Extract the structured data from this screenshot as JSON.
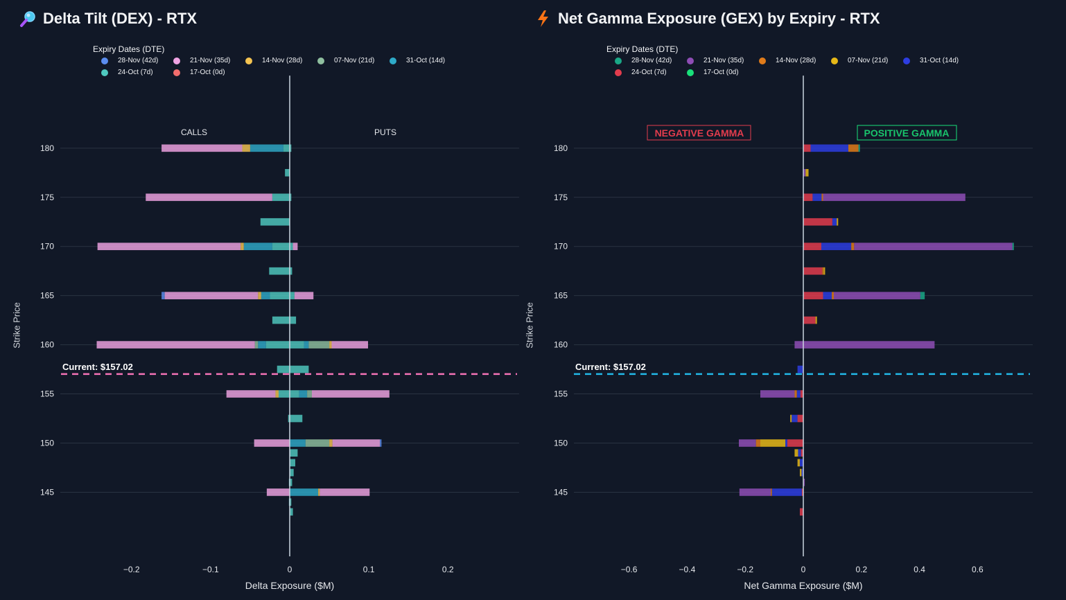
{
  "dex": {
    "title": "Delta Tilt (DEX) - RTX",
    "title_icon": "magnifier-icon",
    "legend_title": "Expiry Dates (DTE)",
    "legend": [
      {
        "label": "28-Nov (42d)",
        "color": "#5b8def"
      },
      {
        "label": "21-Nov (35d)",
        "color": "#f0a3e3"
      },
      {
        "label": "14-Nov (28d)",
        "color": "#f5c451"
      },
      {
        "label": "07-Nov (21d)",
        "color": "#8fbf9f"
      },
      {
        "label": "31-Oct (14d)",
        "color": "#2eaac8"
      },
      {
        "label": "24-Oct (7d)",
        "color": "#4fc9c0"
      },
      {
        "label": "17-Oct (0d)",
        "color": "#f26d6d"
      }
    ],
    "annotations": {
      "calls": "CALLS",
      "puts": "PUTS",
      "current": "Current: $157.02",
      "current_color": "#f472b6"
    },
    "axis": {
      "ylabel": "Strike Price",
      "xlabel": "Delta Exposure ($M)"
    }
  },
  "gex": {
    "title": "Net Gamma Exposure (GEX) by Expiry - RTX",
    "title_icon": "lightning-icon",
    "legend_title": "Expiry Dates (DTE)",
    "legend": [
      {
        "label": "28-Nov (42d)",
        "color": "#1aa786"
      },
      {
        "label": "21-Nov (35d)",
        "color": "#8e4db5"
      },
      {
        "label": "14-Nov (28d)",
        "color": "#e07b1a"
      },
      {
        "label": "07-Nov (21d)",
        "color": "#e6b817"
      },
      {
        "label": "31-Oct (14d)",
        "color": "#2d3de0"
      },
      {
        "label": "24-Oct (7d)",
        "color": "#e23c4d"
      },
      {
        "label": "17-Oct (0d)",
        "color": "#19e07a"
      }
    ],
    "annotations": {
      "negative": "NEGATIVE GAMMA",
      "positive": "POSITIVE GAMMA",
      "current": "Current: $157.02",
      "current_color": "#22b8e8"
    },
    "axis": {
      "ylabel": "Strike Price",
      "xlabel": "Net Gamma Exposure ($M)"
    }
  },
  "chart_data": [
    {
      "type": "bar",
      "orientation": "horizontal",
      "stacked": "overlay",
      "title": "Delta Tilt (DEX) - RTX",
      "xlabel": "Delta Exposure ($M)",
      "ylabel": "Strike Price",
      "xlim": [
        -0.29,
        0.29
      ],
      "ylim": [
        142,
        183.5
      ],
      "xticks": [
        -0.2,
        -0.1,
        0,
        0.1,
        0.2
      ],
      "xtick_labels": [
        "−0.2",
        "−0.1",
        "0",
        "0.1",
        "0.2"
      ],
      "yticks": [
        145,
        150,
        155,
        160,
        165,
        170,
        175,
        180
      ],
      "current_price": 157.02,
      "bar_height_strike": 0.75,
      "bars": [
        {
          "strike": 180,
          "series": "21-Nov (35d)",
          "x0": -0.162,
          "x1": -0.06
        },
        {
          "strike": 180,
          "series": "14-Nov (28d)",
          "x0": -0.06,
          "x1": -0.05
        },
        {
          "strike": 180,
          "series": "31-Oct (14d)",
          "x0": -0.05,
          "x1": -0.008
        },
        {
          "strike": 180,
          "series": "24-Oct (7d)",
          "x0": -0.008,
          "x1": 0.002
        },
        {
          "strike": 177.5,
          "series": "24-Oct (7d)",
          "x0": -0.006,
          "x1": 0.0
        },
        {
          "strike": 175,
          "series": "21-Nov (35d)",
          "x0": -0.182,
          "x1": -0.022
        },
        {
          "strike": 175,
          "series": "24-Oct (7d)",
          "x0": -0.022,
          "x1": 0.002
        },
        {
          "strike": 172.5,
          "series": "24-Oct (7d)",
          "x0": -0.037,
          "x1": 0.0
        },
        {
          "strike": 170,
          "series": "21-Nov (35d)",
          "x0": -0.243,
          "x1": -0.062
        },
        {
          "strike": 170,
          "series": "14-Nov (28d)",
          "x0": -0.062,
          "x1": -0.058
        },
        {
          "strike": 170,
          "series": "31-Oct (14d)",
          "x0": -0.058,
          "x1": -0.022
        },
        {
          "strike": 170,
          "series": "24-Oct (7d)",
          "x0": -0.022,
          "x1": 0.004
        },
        {
          "strike": 170,
          "series": "21-Nov (35d)",
          "x0": 0.004,
          "x1": 0.01
        },
        {
          "strike": 167.5,
          "series": "24-Oct (7d)",
          "x0": -0.026,
          "x1": 0.003
        },
        {
          "strike": 165,
          "series": "28-Nov (42d)",
          "x0": -0.162,
          "x1": -0.158
        },
        {
          "strike": 165,
          "series": "21-Nov (35d)",
          "x0": -0.158,
          "x1": -0.04
        },
        {
          "strike": 165,
          "series": "14-Nov (28d)",
          "x0": -0.04,
          "x1": -0.036
        },
        {
          "strike": 165,
          "series": "31-Oct (14d)",
          "x0": -0.036,
          "x1": -0.025
        },
        {
          "strike": 165,
          "series": "24-Oct (7d)",
          "x0": -0.025,
          "x1": 0.006
        },
        {
          "strike": 165,
          "series": "21-Nov (35d)",
          "x0": 0.006,
          "x1": 0.03
        },
        {
          "strike": 162.5,
          "series": "24-Oct (7d)",
          "x0": -0.022,
          "x1": 0.008
        },
        {
          "strike": 160,
          "series": "21-Nov (35d)",
          "x0": -0.244,
          "x1": -0.044
        },
        {
          "strike": 160,
          "series": "07-Nov (21d)",
          "x0": -0.044,
          "x1": -0.04
        },
        {
          "strike": 160,
          "series": "31-Oct (14d)",
          "x0": -0.04,
          "x1": -0.03
        },
        {
          "strike": 160,
          "series": "24-Oct (7d)",
          "x0": -0.03,
          "x1": 0.018
        },
        {
          "strike": 160,
          "series": "31-Oct (14d)",
          "x0": 0.018,
          "x1": 0.024
        },
        {
          "strike": 160,
          "series": "07-Nov (21d)",
          "x0": 0.024,
          "x1": 0.05
        },
        {
          "strike": 160,
          "series": "14-Nov (28d)",
          "x0": 0.05,
          "x1": 0.053
        },
        {
          "strike": 160,
          "series": "21-Nov (35d)",
          "x0": 0.053,
          "x1": 0.099
        },
        {
          "strike": 157.5,
          "series": "24-Oct (7d)",
          "x0": -0.016,
          "x1": 0.024
        },
        {
          "strike": 155,
          "series": "21-Nov (35d)",
          "x0": -0.08,
          "x1": -0.018
        },
        {
          "strike": 155,
          "series": "14-Nov (28d)",
          "x0": -0.018,
          "x1": -0.014
        },
        {
          "strike": 155,
          "series": "24-Oct (7d)",
          "x0": -0.014,
          "x1": 0.012
        },
        {
          "strike": 155,
          "series": "31-Oct (14d)",
          "x0": 0.012,
          "x1": 0.022
        },
        {
          "strike": 155,
          "series": "07-Nov (21d)",
          "x0": 0.022,
          "x1": 0.028
        },
        {
          "strike": 155,
          "series": "21-Nov (35d)",
          "x0": 0.028,
          "x1": 0.126
        },
        {
          "strike": 152.5,
          "series": "24-Oct (7d)",
          "x0": -0.002,
          "x1": 0.016
        },
        {
          "strike": 150,
          "series": "21-Nov (35d)",
          "x0": -0.045,
          "x1": 0.0
        },
        {
          "strike": 150,
          "series": "31-Oct (14d)",
          "x0": 0.0,
          "x1": 0.02
        },
        {
          "strike": 150,
          "series": "07-Nov (21d)",
          "x0": 0.02,
          "x1": 0.05
        },
        {
          "strike": 150,
          "series": "14-Nov (28d)",
          "x0": 0.05,
          "x1": 0.054
        },
        {
          "strike": 150,
          "series": "21-Nov (35d)",
          "x0": 0.054,
          "x1": 0.114
        },
        {
          "strike": 150,
          "series": "28-Nov (42d)",
          "x0": 0.114,
          "x1": 0.116
        },
        {
          "strike": 149,
          "series": "24-Oct (7d)",
          "x0": 0.0,
          "x1": 0.01
        },
        {
          "strike": 148,
          "series": "24-Oct (7d)",
          "x0": 0.0,
          "x1": 0.007
        },
        {
          "strike": 147,
          "series": "24-Oct (7d)",
          "x0": 0.0,
          "x1": 0.005
        },
        {
          "strike": 146,
          "series": "24-Oct (7d)",
          "x0": -0.001,
          "x1": 0.003
        },
        {
          "strike": 145,
          "series": "21-Nov (35d)",
          "x0": -0.029,
          "x1": 0.0
        },
        {
          "strike": 145,
          "series": "31-Oct (14d)",
          "x0": 0.0,
          "x1": 0.036
        },
        {
          "strike": 145,
          "series": "14-Nov (28d)",
          "x0": 0.036,
          "x1": 0.038
        },
        {
          "strike": 145,
          "series": "21-Nov (35d)",
          "x0": 0.038,
          "x1": 0.101
        },
        {
          "strike": 144,
          "series": "24-Oct (7d)",
          "x0": -0.001,
          "x1": 0.002
        },
        {
          "strike": 143,
          "series": "24-Oct (7d)",
          "x0": 0.0,
          "x1": 0.004
        }
      ]
    },
    {
      "type": "bar",
      "orientation": "horizontal",
      "stacked": "relative",
      "title": "Net Gamma Exposure (GEX) by Expiry - RTX",
      "xlabel": "Net Gamma Exposure ($M)",
      "ylabel": "Strike Price",
      "xlim": [
        -0.79,
        0.79
      ],
      "ylim": [
        142,
        183.5
      ],
      "xticks": [
        -0.6,
        -0.4,
        -0.2,
        0,
        0.2,
        0.4,
        0.6
      ],
      "xtick_labels": [
        "−0.6",
        "−0.4",
        "−0.2",
        "0",
        "0.2",
        "0.4",
        "0.6"
      ],
      "yticks": [
        145,
        150,
        155,
        160,
        165,
        170,
        175,
        180
      ],
      "current_price": 157.02,
      "bar_height_strike": 0.75,
      "bars": [
        {
          "strike": 180,
          "series": "24-Oct (7d)",
          "x0": 0.0,
          "x1": 0.025
        },
        {
          "strike": 180,
          "series": "31-Oct (14d)",
          "x0": 0.025,
          "x1": 0.155
        },
        {
          "strike": 180,
          "series": "14-Nov (28d)",
          "x0": 0.155,
          "x1": 0.19
        },
        {
          "strike": 180,
          "series": "28-Nov (42d)",
          "x0": 0.19,
          "x1": 0.195
        },
        {
          "strike": 177.5,
          "series": "21-Nov (35d)",
          "x0": 0.0,
          "x1": 0.008
        },
        {
          "strike": 177.5,
          "series": "07-Nov (21d)",
          "x0": 0.008,
          "x1": 0.018
        },
        {
          "strike": 175,
          "series": "24-Oct (7d)",
          "x0": 0.0,
          "x1": 0.032
        },
        {
          "strike": 175,
          "series": "31-Oct (14d)",
          "x0": 0.032,
          "x1": 0.063
        },
        {
          "strike": 175,
          "series": "14-Nov (28d)",
          "x0": 0.063,
          "x1": 0.068
        },
        {
          "strike": 175,
          "series": "21-Nov (35d)",
          "x0": 0.068,
          "x1": 0.558
        },
        {
          "strike": 172.5,
          "series": "24-Oct (7d)",
          "x0": 0.0,
          "x1": 0.1
        },
        {
          "strike": 172.5,
          "series": "31-Oct (14d)",
          "x0": 0.1,
          "x1": 0.115
        },
        {
          "strike": 172.5,
          "series": "07-Nov (21d)",
          "x0": 0.115,
          "x1": 0.12
        },
        {
          "strike": 170,
          "series": "24-Oct (7d)",
          "x0": 0.0,
          "x1": 0.062
        },
        {
          "strike": 170,
          "series": "31-Oct (14d)",
          "x0": 0.062,
          "x1": 0.165
        },
        {
          "strike": 170,
          "series": "14-Nov (28d)",
          "x0": 0.165,
          "x1": 0.175
        },
        {
          "strike": 170,
          "series": "21-Nov (35d)",
          "x0": 0.175,
          "x1": 0.72
        },
        {
          "strike": 170,
          "series": "28-Nov (42d)",
          "x0": 0.72,
          "x1": 0.725
        },
        {
          "strike": 167.5,
          "series": "24-Oct (7d)",
          "x0": 0.0,
          "x1": 0.065
        },
        {
          "strike": 167.5,
          "series": "14-Nov (28d)",
          "x0": 0.065,
          "x1": 0.07
        },
        {
          "strike": 167.5,
          "series": "07-Nov (21d)",
          "x0": 0.07,
          "x1": 0.075
        },
        {
          "strike": 165,
          "series": "24-Oct (7d)",
          "x0": 0.0,
          "x1": 0.068
        },
        {
          "strike": 165,
          "series": "31-Oct (14d)",
          "x0": 0.068,
          "x1": 0.098
        },
        {
          "strike": 165,
          "series": "14-Nov (28d)",
          "x0": 0.098,
          "x1": 0.105
        },
        {
          "strike": 165,
          "series": "21-Nov (35d)",
          "x0": 0.105,
          "x1": 0.403
        },
        {
          "strike": 165,
          "series": "28-Nov (42d)",
          "x0": 0.403,
          "x1": 0.418
        },
        {
          "strike": 162.5,
          "series": "24-Oct (7d)",
          "x0": 0.0,
          "x1": 0.042
        },
        {
          "strike": 162.5,
          "series": "07-Nov (21d)",
          "x0": 0.042,
          "x1": 0.047
        },
        {
          "strike": 160,
          "series": "21-Nov (35d)",
          "x0": -0.03,
          "x1": 0.452
        },
        {
          "strike": 157.5,
          "series": "31-Oct (14d)",
          "x0": -0.02,
          "x1": 0.0
        },
        {
          "strike": 155,
          "series": "21-Nov (35d)",
          "x0": -0.148,
          "x1": -0.03
        },
        {
          "strike": 155,
          "series": "14-Nov (28d)",
          "x0": -0.03,
          "x1": -0.022
        },
        {
          "strike": 155,
          "series": "31-Oct (14d)",
          "x0": -0.022,
          "x1": -0.01
        },
        {
          "strike": 155,
          "series": "24-Oct (7d)",
          "x0": -0.01,
          "x1": 0.0
        },
        {
          "strike": 152.5,
          "series": "07-Nov (21d)",
          "x0": -0.045,
          "x1": -0.04
        },
        {
          "strike": 152.5,
          "series": "31-Oct (14d)",
          "x0": -0.04,
          "x1": -0.02
        },
        {
          "strike": 152.5,
          "series": "24-Oct (7d)",
          "x0": -0.02,
          "x1": 0.0
        },
        {
          "strike": 150,
          "series": "21-Nov (35d)",
          "x0": -0.222,
          "x1": -0.163
        },
        {
          "strike": 150,
          "series": "14-Nov (28d)",
          "x0": -0.163,
          "x1": -0.148
        },
        {
          "strike": 150,
          "series": "07-Nov (21d)",
          "x0": -0.148,
          "x1": -0.062
        },
        {
          "strike": 150,
          "series": "31-Oct (14d)",
          "x0": -0.062,
          "x1": -0.055
        },
        {
          "strike": 150,
          "series": "24-Oct (7d)",
          "x0": -0.055,
          "x1": 0.0
        },
        {
          "strike": 149,
          "series": "07-Nov (21d)",
          "x0": -0.03,
          "x1": -0.018
        },
        {
          "strike": 149,
          "series": "31-Oct (14d)",
          "x0": -0.018,
          "x1": -0.008
        },
        {
          "strike": 149,
          "series": "24-Oct (7d)",
          "x0": -0.008,
          "x1": 0.0
        },
        {
          "strike": 148,
          "series": "07-Nov (21d)",
          "x0": -0.02,
          "x1": -0.012
        },
        {
          "strike": 148,
          "series": "31-Oct (14d)",
          "x0": -0.012,
          "x1": 0.0
        },
        {
          "strike": 147,
          "series": "07-Nov (21d)",
          "x0": -0.012,
          "x1": -0.006
        },
        {
          "strike": 147,
          "series": "31-Oct (14d)",
          "x0": -0.006,
          "x1": 0.0
        },
        {
          "strike": 146,
          "series": "21-Nov (35d)",
          "x0": 0.0,
          "x1": 0.005
        },
        {
          "strike": 145,
          "series": "21-Nov (35d)",
          "x0": -0.22,
          "x1": -0.112
        },
        {
          "strike": 145,
          "series": "14-Nov (28d)",
          "x0": -0.112,
          "x1": -0.108
        },
        {
          "strike": 145,
          "series": "31-Oct (14d)",
          "x0": -0.108,
          "x1": -0.005
        },
        {
          "strike": 145,
          "series": "24-Oct (7d)",
          "x0": -0.005,
          "x1": 0.0
        },
        {
          "strike": 143,
          "series": "24-Oct (7d)",
          "x0": -0.012,
          "x1": 0.0
        }
      ]
    }
  ]
}
